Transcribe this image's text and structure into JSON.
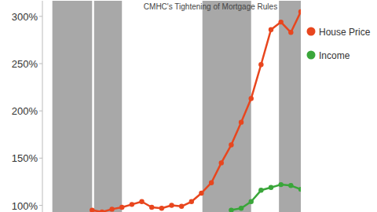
{
  "chart_data": {
    "type": "line",
    "title": "CMHC's Tightening of Mortgage Rules",
    "x": [
      5,
      6,
      7,
      8,
      9,
      10,
      11,
      12,
      13,
      14,
      15,
      16,
      17,
      18,
      19,
      20,
      21,
      22,
      23,
      24,
      25,
      26
    ],
    "xlim": [
      0,
      26
    ],
    "series": [
      {
        "name": "House Price",
        "color": "#e8461e",
        "marker": "circle",
        "values": [
          95,
          93,
          96,
          98,
          101,
          104,
          98,
          97,
          100,
          99,
          104,
          113,
          124,
          145,
          164,
          188,
          213,
          249,
          286,
          294,
          283,
          305
        ]
      },
      {
        "name": "Income",
        "color": "#3aa63a",
        "marker": "circle",
        "values": [
          null,
          null,
          null,
          null,
          null,
          null,
          null,
          null,
          null,
          null,
          null,
          null,
          null,
          null,
          95,
          97,
          104,
          116,
          119,
          122,
          121,
          117
        ]
      }
    ],
    "ylim": [
      93,
      316.5
    ],
    "yticks": [
      {
        "value": 100,
        "label": "100%"
      },
      {
        "value": 150,
        "label": "150%"
      },
      {
        "value": 200,
        "label": "200%"
      },
      {
        "value": 250,
        "label": "250%"
      },
      {
        "value": 300,
        "label": "300%"
      }
    ],
    "shaded_periods": [
      [
        1,
        5
      ],
      [
        5.2,
        8
      ],
      [
        16.1,
        21
      ],
      [
        23.8,
        26
      ]
    ],
    "grid": false,
    "legend": "right",
    "tick_labels": "y"
  }
}
